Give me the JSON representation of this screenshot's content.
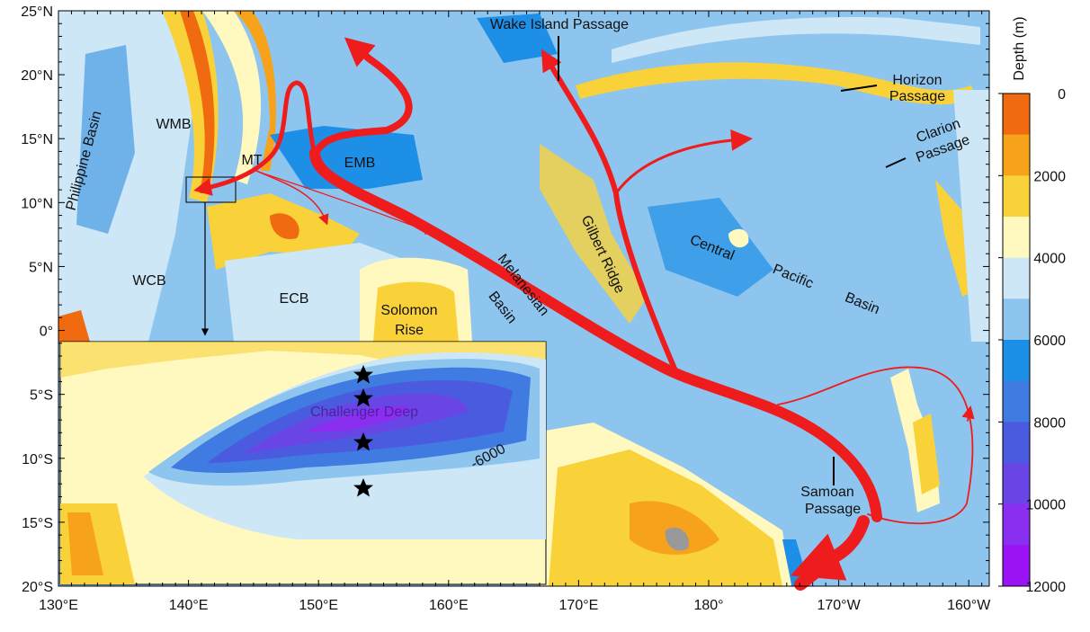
{
  "map": {
    "lat_labels": [
      "25°N",
      "20°N",
      "15°N",
      "10°N",
      "5°N",
      "0°",
      "5°S",
      "10°S",
      "15°S",
      "20°S"
    ],
    "lon_labels": [
      "130°E",
      "140°E",
      "150°E",
      "160°E",
      "170°E",
      "180°",
      "170°W",
      "160°W"
    ],
    "labels": {
      "wake": "Wake Island Passage",
      "horizon": [
        "Horizon",
        "Passage"
      ],
      "clarion": [
        "Clarion",
        "Passage"
      ],
      "philippine": "Philippine Basin",
      "wmb": "WMB",
      "mt": "MT",
      "emb": "EMB",
      "wcb": "WCB",
      "ecb": "ECB",
      "solomon": [
        "Solomon",
        "Rise"
      ],
      "melanesian": [
        "Melanesian",
        "Basin"
      ],
      "gilbert": "Gilbert Ridge",
      "central": [
        "Central",
        "Pacific",
        "Basin"
      ],
      "samoan": [
        "Samoan",
        "Passage"
      ]
    },
    "inset": {
      "title": "Challenger Deep",
      "contour": "-6000"
    }
  },
  "colorbar": {
    "title": "Depth (m)",
    "range": [
      0,
      12000
    ],
    "ticks": [
      0,
      2000,
      4000,
      6000,
      8000,
      10000,
      12000
    ],
    "colors": [
      "#f06a10",
      "#f7a21b",
      "#f9d23a",
      "#fff9c0",
      "#cde7f7",
      "#8ec5ef",
      "#1e8fe6",
      "#3f7be0",
      "#4a5be0",
      "#6a45e6",
      "#8a2ef0",
      "#9b14f5"
    ]
  }
}
